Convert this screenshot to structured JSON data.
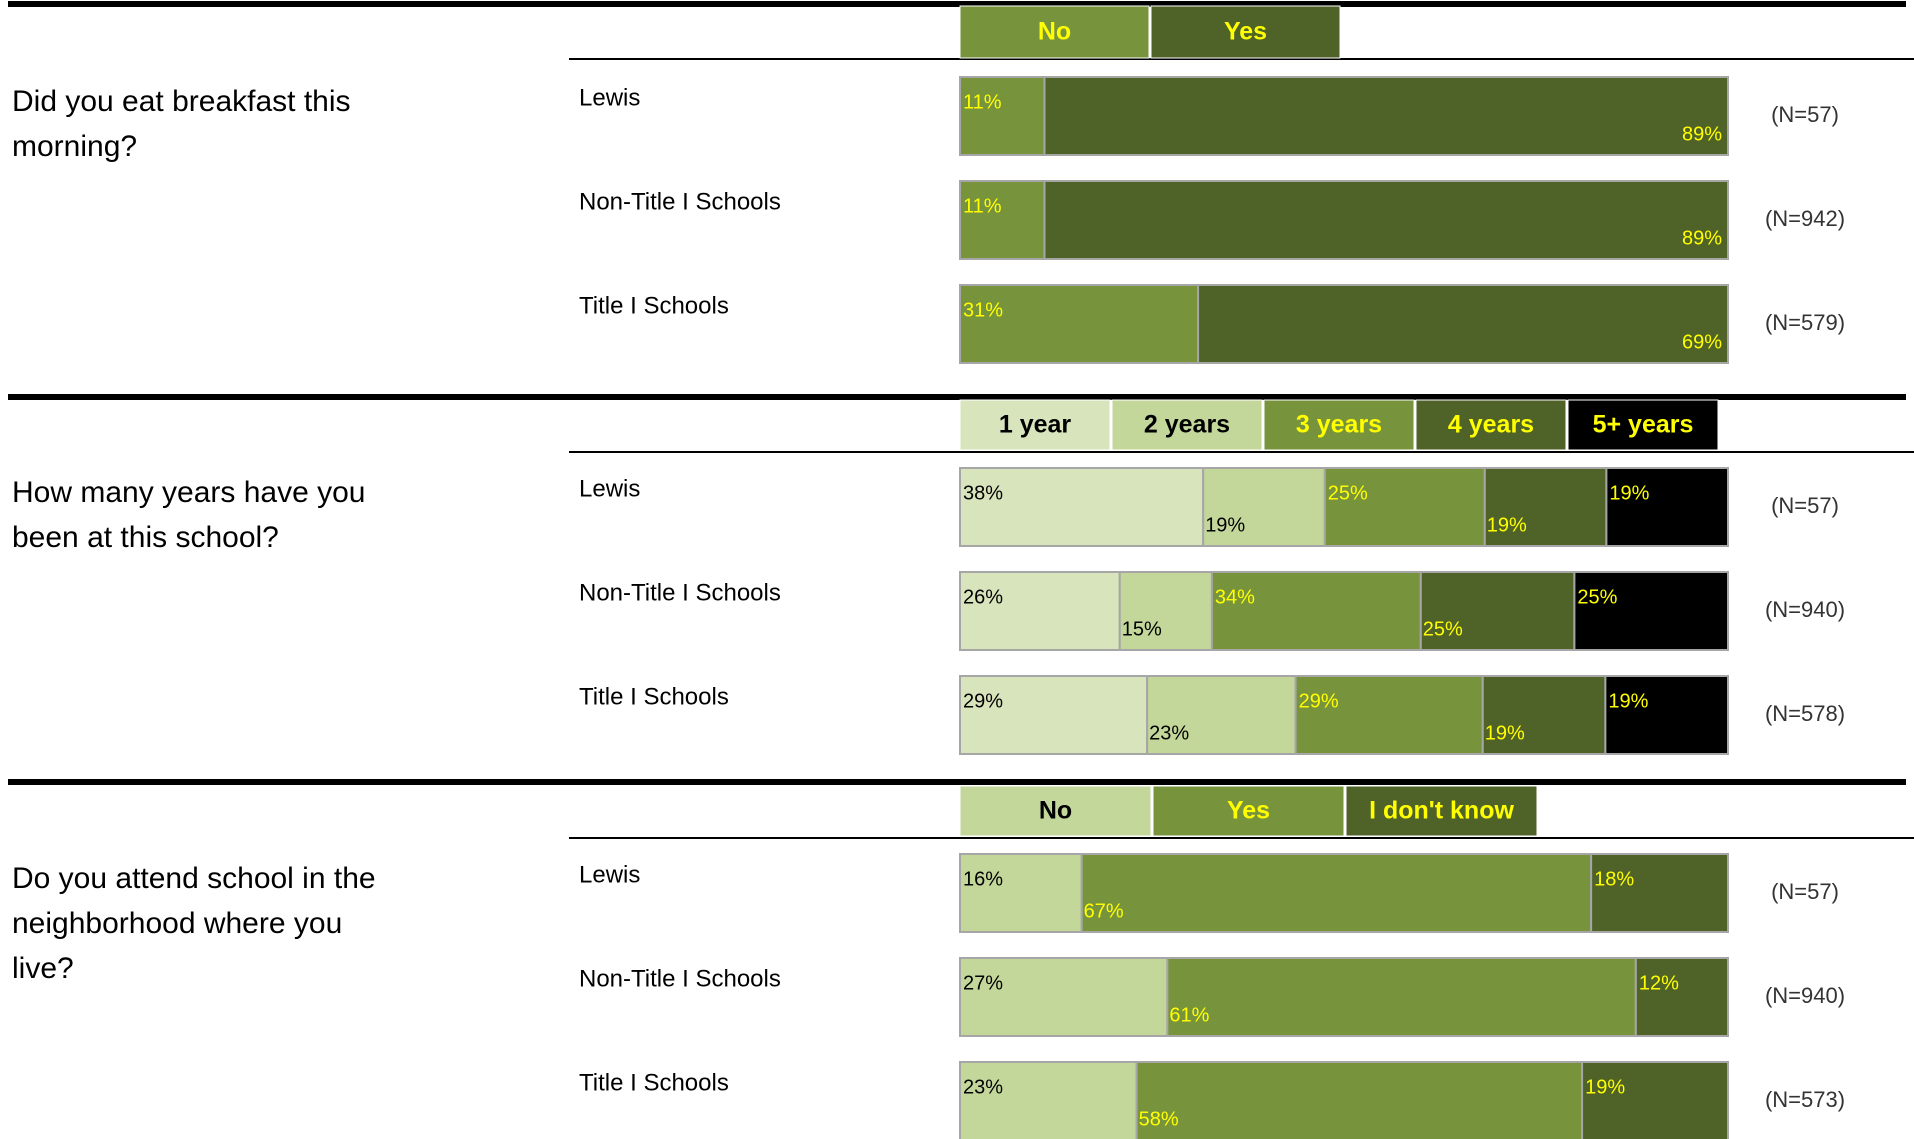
{
  "chart_data": [
    {
      "type": "bar",
      "orientation": "horizontal",
      "stacked": true,
      "title": "Did you eat breakfast this morning?",
      "categories": [
        "Lewis",
        "Non-Title I Schools",
        "Title I Schools"
      ],
      "n_labels": [
        "(N=57)",
        "(N=942)",
        "(N=579)"
      ],
      "series": [
        {
          "name": "No",
          "color": "#77933c",
          "label_color": "#ffff00",
          "values": [
            11,
            11,
            31
          ],
          "value_labels": [
            "11%",
            "11%",
            "31%"
          ]
        },
        {
          "name": "Yes",
          "color": "#4f6228",
          "label_color": "#ffff00",
          "values": [
            89,
            89,
            69
          ],
          "value_labels": [
            "89%",
            "89%",
            "69%"
          ]
        }
      ]
    },
    {
      "type": "bar",
      "orientation": "horizontal",
      "stacked": true,
      "title": "How many years have you been at this school?",
      "categories": [
        "Lewis",
        "Non-Title I Schools",
        "Title I Schools"
      ],
      "n_labels": [
        "(N=57)",
        "(N=940)",
        "(N=578)"
      ],
      "series": [
        {
          "name": "1 year",
          "color": "#d8e4bc",
          "label_color": "#000000",
          "values": [
            38,
            26,
            29
          ],
          "value_labels": [
            "38%",
            "26%",
            "29%"
          ]
        },
        {
          "name": "2 years",
          "color": "#c4d79b",
          "label_color": "#000000",
          "values": [
            19,
            15,
            23
          ],
          "value_labels": [
            "19%",
            "15%",
            "23%"
          ]
        },
        {
          "name": "3 years",
          "color": "#77933c",
          "label_color": "#ffff00",
          "values": [
            25,
            34,
            29
          ],
          "value_labels": [
            "25%",
            "34%",
            "29%"
          ]
        },
        {
          "name": "4 years",
          "color": "#4f6228",
          "label_color": "#ffff00",
          "values": [
            19,
            25,
            19
          ],
          "value_labels": [
            "19%",
            "25%",
            "19%"
          ]
        },
        {
          "name": "5+ years",
          "color": "#000000",
          "label_color": "#ffff00",
          "values": [
            19,
            25,
            19
          ],
          "value_labels": [
            "19%",
            "25%",
            "19%"
          ]
        }
      ]
    },
    {
      "type": "bar",
      "orientation": "horizontal",
      "stacked": true,
      "title": "Do you attend school in the neighborhood where you live?",
      "categories": [
        "Lewis",
        "Non-Title I Schools",
        "Title I Schools"
      ],
      "n_labels": [
        "(N=57)",
        "(N=940)",
        "(N=573)"
      ],
      "series": [
        {
          "name": "No",
          "color": "#c4d79b",
          "label_color": "#000000",
          "values": [
            16,
            27,
            23
          ],
          "value_labels": [
            "16%",
            "27%",
            "23%"
          ]
        },
        {
          "name": "Yes",
          "color": "#77933c",
          "label_color": "#ffff00",
          "values": [
            67,
            61,
            58
          ],
          "value_labels": [
            "67%",
            "61%",
            "58%"
          ]
        },
        {
          "name": "I don't know",
          "color": "#4f6228",
          "label_color": "#ffff00",
          "values": [
            18,
            12,
            19
          ],
          "value_labels": [
            "18%",
            "12%",
            "19%"
          ]
        }
      ]
    }
  ]
}
